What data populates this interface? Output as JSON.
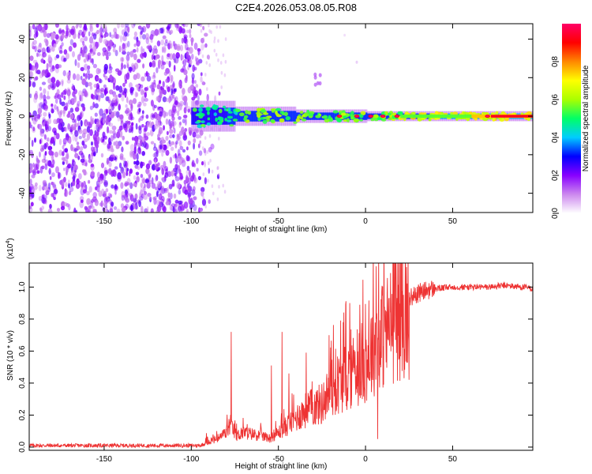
{
  "figure_title": "C2E4.2026.053.08.05.R08",
  "chart_data": [
    {
      "type": "heatmap",
      "title": "C2E4.2026.053.08.05.R08",
      "xlabel": "Height of straight line (km)",
      "ylabel": "Frequency (Hz)",
      "xlim": [
        -193,
        96
      ],
      "ylim": [
        -50,
        48
      ],
      "x_ticks": [
        -150,
        -100,
        -50,
        0,
        50
      ],
      "y_ticks": [
        -40,
        -20,
        0,
        20,
        40
      ],
      "x_tick_labels": [
        "-150",
        "-100",
        "-50",
        "0",
        "50"
      ],
      "y_tick_labels": [
        "-40",
        "-20",
        "0",
        "20",
        "40"
      ],
      "colorbar": {
        "label": "Normalized spectral amplitude",
        "range": [
          0,
          1
        ],
        "ticks": [
          0.0,
          0.2,
          0.4,
          0.6,
          0.8
        ],
        "tick_labels": [
          "0.0",
          "0.2",
          "0.4",
          "0.6",
          "0.8"
        ],
        "colormap": [
          "#ffffff",
          "#cc88ee",
          "#8800ff",
          "#0000ff",
          "#00ccff",
          "#00ff66",
          "#aaff00",
          "#ffff00",
          "#ff8800",
          "#ff0000",
          "#ff0066"
        ]
      },
      "features": {
        "noise_region_x": [
          -193,
          -90
        ],
        "signal_band_x": [
          -100,
          96
        ],
        "signal_center_freq": 0,
        "peaks_x": [
          -15,
          -5,
          3,
          10,
          18,
          70,
          96
        ],
        "faint_patch_x": [
          -30,
          -25
        ],
        "faint_patch_y": [
          15,
          22
        ]
      }
    },
    {
      "type": "line",
      "xlabel": "Height of straight line (km)",
      "ylabel": "SNR (10 * v/v)",
      "y_scale_label": "(x10",
      "y_scale_exp": "4",
      "y_scale_close": ")",
      "xlim": [
        -193,
        96
      ],
      "ylim": [
        -0.02,
        1.15
      ],
      "x_ticks": [
        -150,
        -100,
        -50,
        0,
        50
      ],
      "y_ticks": [
        0.0,
        0.2,
        0.4,
        0.6,
        0.8,
        1.0
      ],
      "x_tick_labels": [
        "-150",
        "-100",
        "-50",
        "0",
        "50"
      ],
      "y_tick_labels": [
        "0.0",
        "0.2",
        "0.4",
        "0.6",
        "0.8",
        "1.0"
      ],
      "color": "#ee3333",
      "series": [
        {
          "name": "SNR",
          "envelope": {
            "x": [
              -193,
              -95,
              -90,
              -85,
              -80,
              -78,
              -76,
              -74,
              -70,
              -65,
              -60,
              -55,
              -50,
              -45,
              -40,
              -35,
              -30,
              -25,
              -20,
              -15,
              -10,
              -5,
              0,
              5,
              7,
              10,
              15,
              20,
              25,
              30,
              35,
              40,
              50,
              60,
              70,
              80,
              90,
              96
            ],
            "y": [
              0.01,
              0.01,
              0.03,
              0.05,
              0.1,
              0.15,
              0.12,
              0.08,
              0.1,
              0.09,
              0.08,
              0.06,
              0.1,
              0.15,
              0.2,
              0.25,
              0.28,
              0.3,
              0.4,
              0.45,
              0.5,
              0.55,
              0.6,
              0.7,
              0.75,
              0.78,
              0.85,
              0.9,
              0.93,
              0.96,
              0.98,
              0.99,
              1.0,
              1.0,
              1.0,
              1.01,
              1.0,
              0.99
            ]
          },
          "notable_spikes": [
            {
              "x": -77,
              "y": 0.72
            },
            {
              "x": -54,
              "y": 0.51
            },
            {
              "x": -48,
              "y": 0.72
            },
            {
              "x": -44,
              "y": 0.46
            },
            {
              "x": -34,
              "y": 0.59
            },
            {
              "x": -21,
              "y": 0.7
            },
            {
              "x": -9,
              "y": 0.9
            },
            {
              "x": 6,
              "y": 1.13
            },
            {
              "x": 7,
              "y": 0.05
            }
          ]
        }
      ]
    }
  ]
}
